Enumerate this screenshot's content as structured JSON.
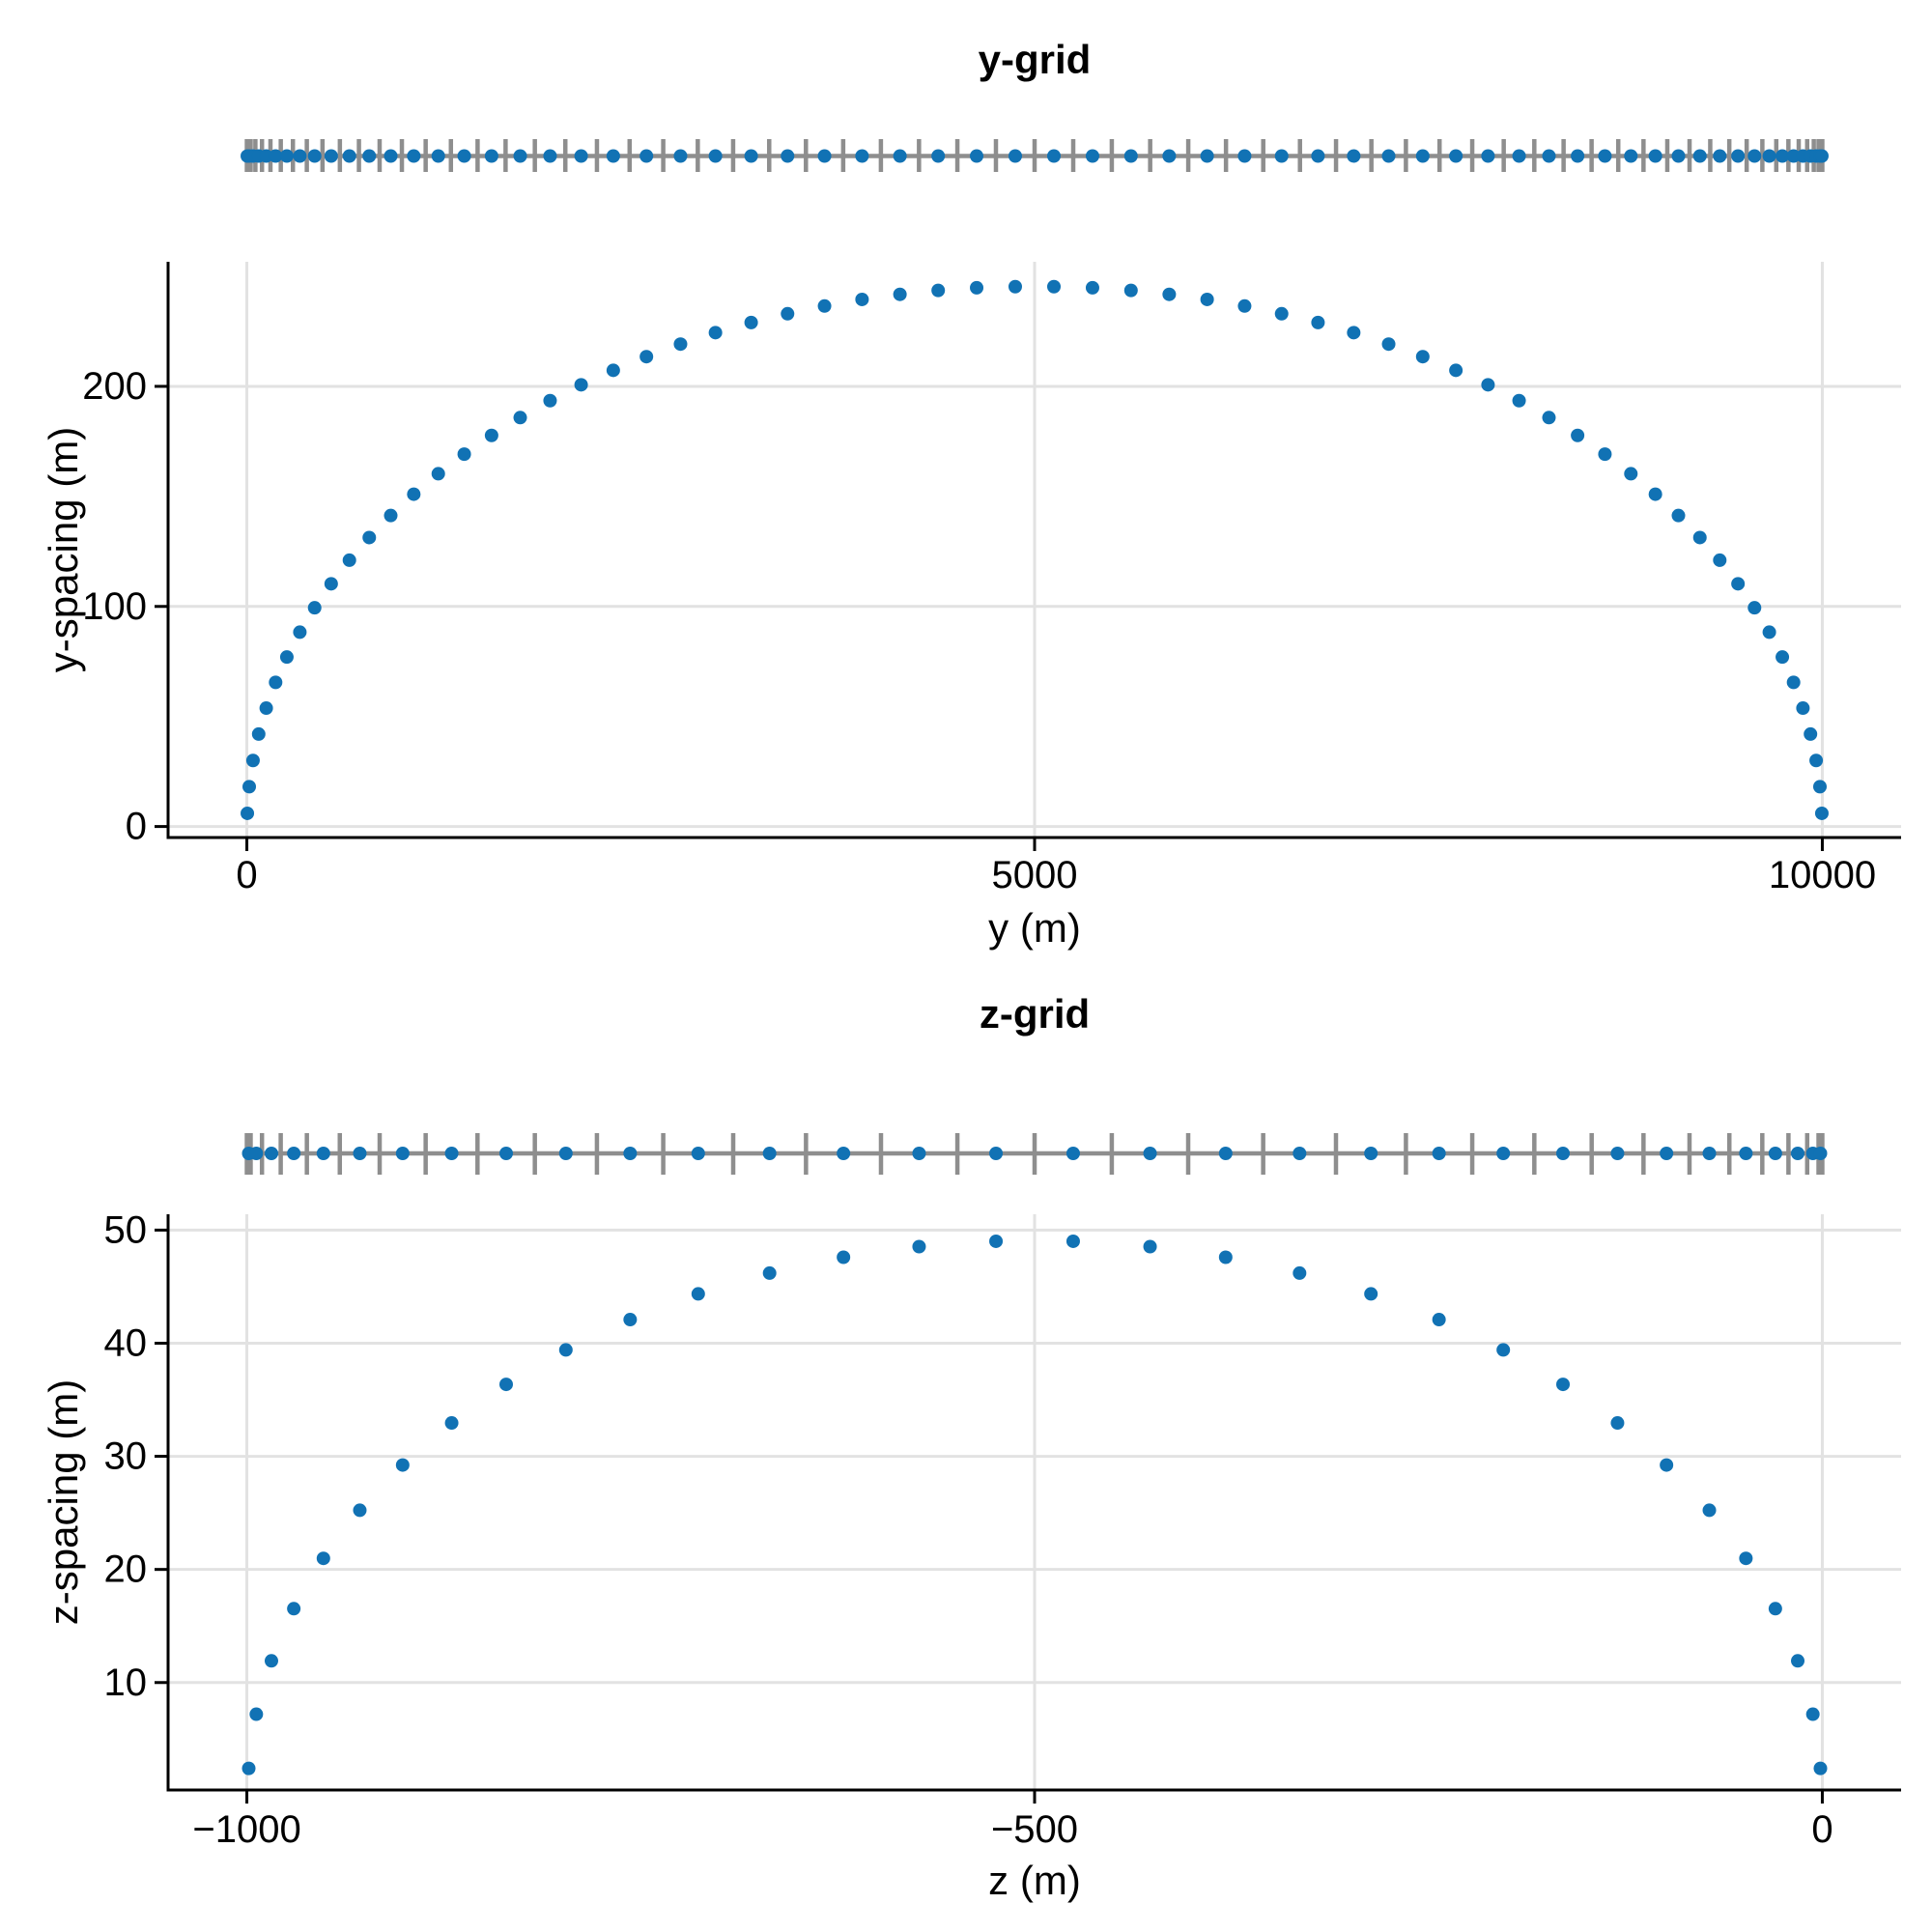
{
  "style": {
    "marker_color": "#1172B4",
    "rug_color": "#8E8E8E",
    "gridline_color": "#E2E2E2",
    "spine_color": "#000000",
    "text_color": "#000000",
    "background": "#FFFFFF"
  },
  "chart_data": [
    {
      "id": "y-grid",
      "type": "scatter",
      "title": "y-grid",
      "xlabel": "y (m)",
      "ylabel": "y-spacing (m)",
      "grid": "on",
      "legend": "none",
      "xlim": [
        -500,
        10500
      ],
      "ylim": [
        -5,
        256.6
      ],
      "xticks": [
        0,
        5000,
        10000
      ],
      "xtick_labels": [
        "0",
        "5000",
        "10000"
      ],
      "yticks": [
        0,
        100,
        200
      ],
      "ytick_labels": [
        "0",
        "100",
        "200"
      ],
      "grid_edges": [
        0,
        6.0,
        24.1,
        54.1,
        96.1,
        149.8,
        215.3,
        292.3,
        380.6,
        480.1,
        590.4,
        711.4,
        842.7,
        984.0,
        1135.0,
        1295.2,
        1464.5,
        1642.2,
        1828.0,
        2021.5,
        2222.1,
        2429.5,
        2643.0,
        2862.2,
        3086.6,
        3315.5,
        3548.6,
        3785.1,
        4024.5,
        4266.3,
        4509.9,
        4754.7,
        5000.0,
        5245.3,
        5490.1,
        5733.7,
        5975.5,
        6214.9,
        6451.4,
        6684.5,
        6913.4,
        7137.8,
        7356.9,
        7570.5,
        7777.9,
        7977.8,
        8171.9,
        8357.8,
        8535.5,
        8704.8,
        8865.0,
        9016.0,
        9157.3,
        9288.6,
        9409.6,
        9519.9,
        9619.4,
        9707.7,
        9784.7,
        9850.2,
        9903.9,
        9945.9,
        9975.9,
        9994.0,
        10000.0
      ],
      "x": [
        3.0,
        15.1,
        39.1,
        75.1,
        123.0,
        182.5,
        253.8,
        336.4,
        430.3,
        535.2,
        650.9,
        777.0,
        913.3,
        1059.5,
        1215.1,
        1379.8,
        1553.3,
        1735.1,
        1924.7,
        2121.8,
        2325.8,
        2536.2,
        2752.6,
        2974.4,
        3201.0,
        3432.0,
        3666.8,
        3904.8,
        4145.4,
        4388.1,
        4632.3,
        4877.3,
        5122.7,
        5367.7,
        5611.9,
        5854.6,
        6095.2,
        6333.2,
        6568.0,
        6799.0,
        7025.6,
        7247.4,
        7463.8,
        7674.2,
        7878.2,
        8075.3,
        8264.9,
        8446.7,
        8620.2,
        8784.9,
        8940.5,
        9086.7,
        9223.0,
        9349.1,
        9464.8,
        9569.7,
        9663.6,
        9746.2,
        9817.5,
        9877.0,
        9924.9,
        9960.9,
        9984.9,
        9997.0
      ],
      "y": [
        6.0,
        18.1,
        30.0,
        42.0,
        53.8,
        65.5,
        77.0,
        88.3,
        99.4,
        110.3,
        121.0,
        131.3,
        141.3,
        151.0,
        160.3,
        169.2,
        177.7,
        185.8,
        193.5,
        200.7,
        207.3,
        213.5,
        219.2,
        224.4,
        229.0,
        233.0,
        236.5,
        239.5,
        241.8,
        243.6,
        244.8,
        245.3,
        245.3,
        244.8,
        243.6,
        241.8,
        239.5,
        236.5,
        233.0,
        229.0,
        224.4,
        219.2,
        213.5,
        207.3,
        200.7,
        193.5,
        185.8,
        177.7,
        169.2,
        160.3,
        151.0,
        141.3,
        131.3,
        121.0,
        110.3,
        99.4,
        88.3,
        77.0,
        65.5,
        53.8,
        42.0,
        30.0,
        18.1,
        6.0
      ]
    },
    {
      "id": "z-grid",
      "type": "scatter",
      "title": "z-grid",
      "xlabel": "z (m)",
      "ylabel": "z-spacing (m)",
      "grid": "on",
      "legend": "none",
      "xlim": [
        -1050,
        50
      ],
      "ylim": [
        0.5,
        51.4
      ],
      "xticks": [
        -1000,
        -500,
        0
      ],
      "xtick_labels": [
        "−1000",
        "−500",
        "0"
      ],
      "yticks": [
        10,
        20,
        30,
        40,
        50
      ],
      "ytick_labels": [
        "10",
        "20",
        "30",
        "40",
        "50"
      ],
      "grid_edges": [
        -1000,
        -997.6,
        -990.4,
        -978.5,
        -961.9,
        -941.0,
        -915.7,
        -886.5,
        -853.6,
        -817.2,
        -777.8,
        -735.7,
        -691.3,
        -645.1,
        -597.5,
        -549.0,
        -500,
        -451.0,
        -402.5,
        -354.9,
        -308.7,
        -264.3,
        -222.2,
        -182.8,
        -146.4,
        -113.5,
        -84.3,
        -59.0,
        -38.1,
        -21.5,
        -9.6,
        -2.4,
        0
      ],
      "x": [
        -998.8,
        -994.0,
        -984.4,
        -970.2,
        -951.4,
        -928.3,
        -901.1,
        -870.0,
        -835.4,
        -797.5,
        -756.7,
        -713.5,
        -668.2,
        -621.3,
        -573.3,
        -524.5,
        -475.5,
        -426.7,
        -378.7,
        -331.8,
        -286.5,
        -243.3,
        -202.5,
        -164.6,
        -130.0,
        -98.9,
        -71.7,
        -48.5,
        -29.8,
        -15.6,
        -6.0,
        -1.2
      ],
      "y": [
        2.41,
        7.2,
        11.92,
        16.53,
        20.98,
        25.23,
        29.23,
        32.95,
        36.36,
        39.41,
        42.09,
        44.36,
        46.2,
        47.6,
        48.54,
        49.01,
        49.01,
        48.54,
        47.6,
        46.2,
        44.36,
        42.09,
        39.41,
        36.36,
        32.95,
        29.23,
        25.23,
        20.98,
        16.53,
        11.92,
        7.2,
        2.41
      ]
    }
  ]
}
